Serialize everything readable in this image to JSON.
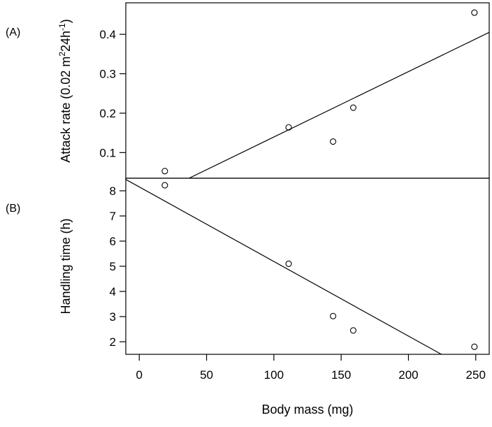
{
  "chart_data": [
    {
      "type": "scatter",
      "panel_label": "(A)",
      "ylabel_main": "Attack rate (0.02 m",
      "ylabel_sup1": "2",
      "ylabel_mid": "24h",
      "ylabel_sup2": "-1",
      "ylabel_end": ")",
      "xlim": [
        -10,
        260
      ],
      "ylim": [
        0.035,
        0.48
      ],
      "y_ticks": [
        0.1,
        0.2,
        0.3,
        0.4
      ],
      "y_tick_labels": [
        "0.1",
        "0.2",
        "0.3",
        "0.4"
      ],
      "points": [
        {
          "x": 19,
          "y": 0.053
        },
        {
          "x": 111,
          "y": 0.164
        },
        {
          "x": 144,
          "y": 0.128
        },
        {
          "x": 159,
          "y": 0.214
        },
        {
          "x": 249,
          "y": 0.455
        }
      ],
      "fit_line": {
        "x": [
          37,
          260
        ],
        "y": [
          0.035,
          0.405
        ]
      }
    },
    {
      "type": "scatter",
      "panel_label": "(B)",
      "ylabel": "Handling time (h)",
      "xlabel": "Body mass (mg)",
      "xlim": [
        -10,
        260
      ],
      "ylim": [
        1.5,
        8.5
      ],
      "x_ticks": [
        0,
        50,
        100,
        150,
        200,
        250
      ],
      "x_tick_labels": [
        "0",
        "50",
        "100",
        "150",
        "200",
        "250"
      ],
      "y_ticks": [
        2,
        3,
        4,
        5,
        6,
        7,
        8
      ],
      "y_tick_labels": [
        "2",
        "3",
        "4",
        "5",
        "6",
        "7",
        "8"
      ],
      "points": [
        {
          "x": 19,
          "y": 8.22
        },
        {
          "x": 111,
          "y": 5.1
        },
        {
          "x": 144,
          "y": 3.02
        },
        {
          "x": 159,
          "y": 2.45
        },
        {
          "x": 249,
          "y": 1.8
        }
      ],
      "fit_line": {
        "x": [
          -10,
          224.5
        ],
        "y": [
          8.45,
          1.5
        ]
      }
    }
  ]
}
